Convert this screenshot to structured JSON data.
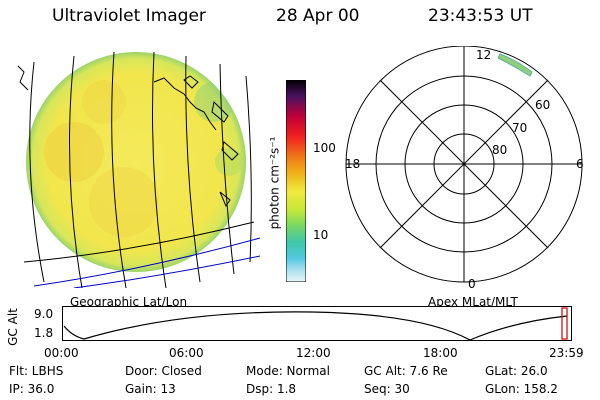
{
  "header": {
    "instrument": "Ultraviolet Imager",
    "date": "28 Apr 00",
    "time": "23:43:53 UT"
  },
  "colorbar": {
    "unit_label": "photon cm⁻²s⁻¹",
    "tick_labels": [
      "100",
      "10"
    ]
  },
  "geo_panel": {
    "label": "Geographic Lat/Lon"
  },
  "polar_panel": {
    "label": "Apex MLat/MLT",
    "mlt_labels": [
      "12",
      "18",
      "6",
      "0"
    ],
    "mlat_labels": [
      "60",
      "70",
      "80"
    ]
  },
  "orbit_plot": {
    "ylabel": "GC Alt",
    "y_ticks": [
      "9.0",
      "1.8"
    ],
    "x_ticks": [
      "00:00",
      "06:00",
      "12:00",
      "18:00",
      "23:59"
    ]
  },
  "status": {
    "flt": "Flt: LBHS",
    "ip": "IP: 36.0",
    "door": "Door: Closed",
    "gain": "Gain: 13",
    "mode": "Mode: Normal",
    "dsp": "Dsp:    1.8",
    "gcalt": "GC Alt: 7.6 Re",
    "seq": "Seq: 30",
    "glat": "GLat:  26.0",
    "glon": "GLon: 158.2"
  },
  "colors": {
    "disk_fill": "#f2e85a",
    "disk_edge": "#8fd07a",
    "map_lines": "#000000",
    "coastline_alt": "#0000cc",
    "marker": "#cc0000"
  }
}
